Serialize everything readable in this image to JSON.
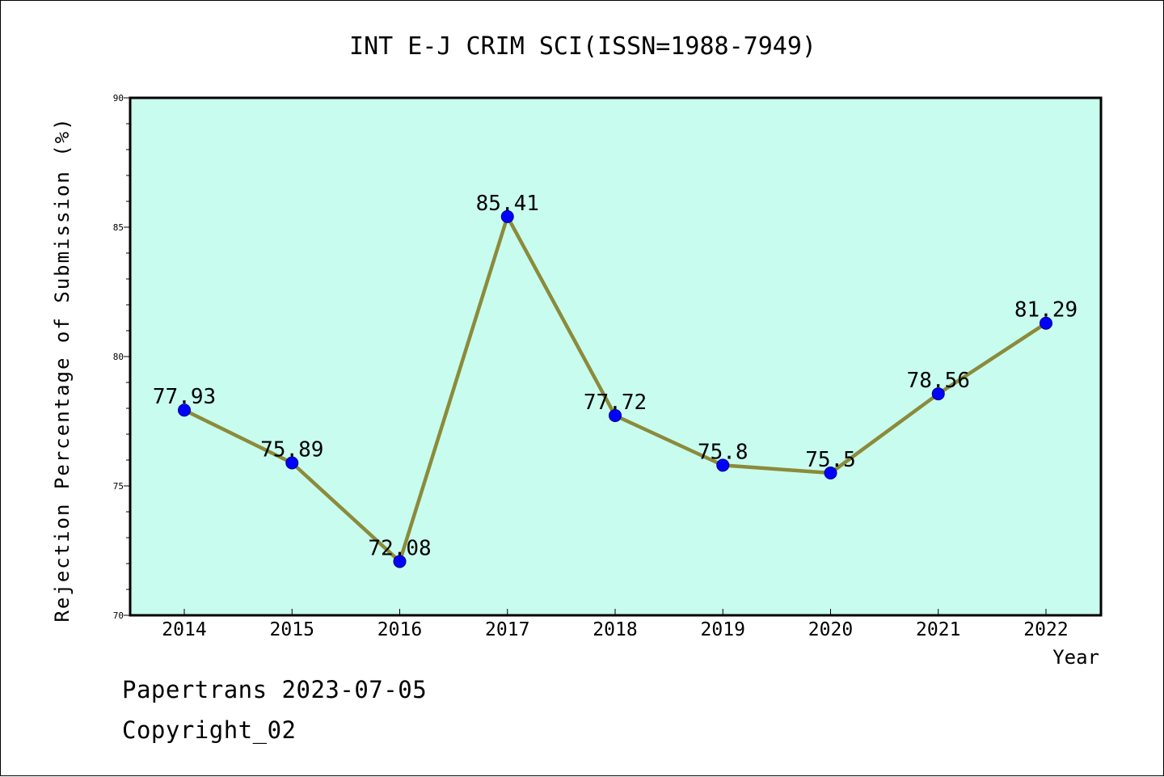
{
  "chart_data": {
    "type": "line",
    "title": "INT E-J CRIM SCI(ISSN=1988-7949)",
    "xlabel": "Year",
    "ylabel": "Rejection Percentage of Submission (%)",
    "categories": [
      "2014",
      "2015",
      "2016",
      "2017",
      "2018",
      "2019",
      "2020",
      "2021",
      "2022"
    ],
    "series": [
      {
        "values": [
          77.93,
          75.89,
          72.08,
          85.41,
          77.72,
          75.8,
          75.5,
          78.56,
          81.29
        ],
        "labels": [
          "77.93",
          "75.89",
          "72.08",
          "85.41",
          "77.72",
          "75.8",
          "75.5",
          "78.56",
          "81.29"
        ]
      }
    ],
    "ylim": [
      70,
      90
    ],
    "yticks": [
      70,
      75,
      80,
      85,
      90
    ],
    "ytick_labels": [
      "70",
      "75",
      "80",
      "85",
      "90"
    ],
    "grid": false,
    "colors": {
      "plot_background": "#c8fcef",
      "line": "#8b8b3a",
      "marker": "#0000ff"
    }
  },
  "footer": {
    "line1": "Papertrans 2023-07-05",
    "line2": "Copyright_02"
  }
}
